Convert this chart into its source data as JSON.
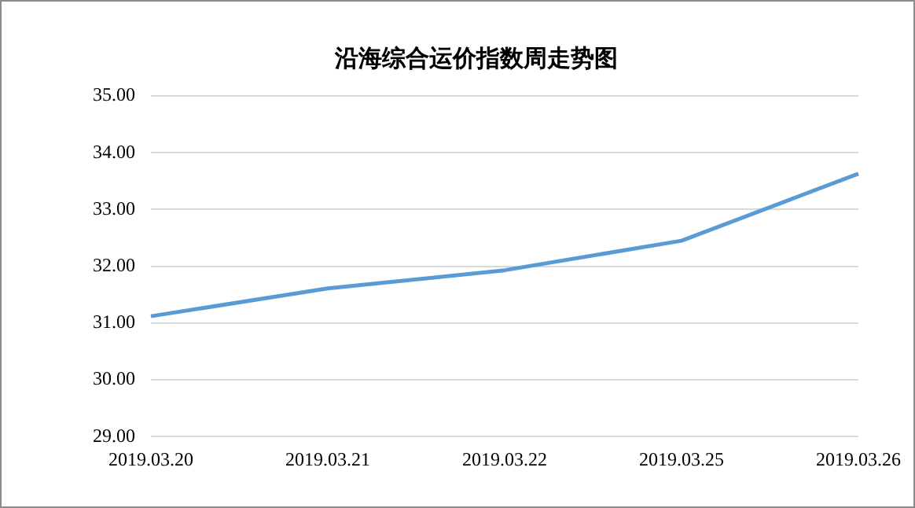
{
  "chart_data": {
    "type": "line",
    "title": "沿海综合运价指数周走势图",
    "categories": [
      "2019.03.20",
      "2019.03.21",
      "2019.03.22",
      "2019.03.25",
      "2019.03.26"
    ],
    "series": [
      {
        "color": "#5b9bd5",
        "values": [
          31.12,
          31.61,
          31.93,
          32.45,
          33.63
        ]
      }
    ],
    "ylim": [
      29,
      35
    ],
    "yticks": [
      {
        "value": 29,
        "label": "29.00"
      },
      {
        "value": 30,
        "label": "30.00"
      },
      {
        "value": 31,
        "label": "31.00"
      },
      {
        "value": 32,
        "label": "32.00"
      },
      {
        "value": 33,
        "label": "33.00"
      },
      {
        "value": 34,
        "label": "34.00"
      },
      {
        "value": 35,
        "label": "35.00"
      }
    ],
    "grid": "y",
    "legend": false,
    "marker": "none",
    "line_style": "solid"
  }
}
